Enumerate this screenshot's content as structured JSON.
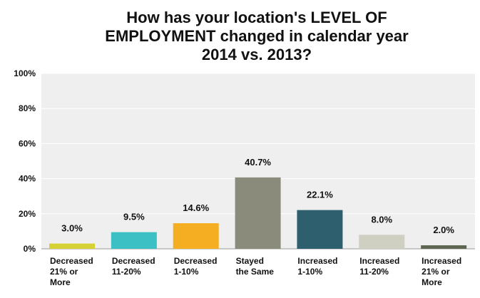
{
  "title_lines": [
    "How has your location's LEVEL OF",
    "EMPLOYMENT changed in calendar year",
    "2014 vs. 2013?"
  ],
  "chart_data": {
    "type": "bar",
    "title": "How has your location's LEVEL OF EMPLOYMENT changed in calendar year 2014 vs. 2013?",
    "categories": [
      [
        "Decreased",
        "21% or",
        "More"
      ],
      [
        "Decreased",
        "11-20%"
      ],
      [
        "Decreased",
        "1-10%"
      ],
      [
        "Stayed",
        "the Same"
      ],
      [
        "Increased",
        "1-10%"
      ],
      [
        "Increased",
        "11-20%"
      ],
      [
        "Increased",
        "21% or",
        "More"
      ]
    ],
    "values": [
      3.0,
      9.5,
      14.6,
      40.7,
      22.1,
      8.0,
      2.0
    ],
    "value_labels": [
      "3.0%",
      "9.5%",
      "14.6%",
      "40.7%",
      "22.1%",
      "8.0%",
      "2.0%"
    ],
    "colors": [
      "#d6d236",
      "#3cc0c4",
      "#f5ae22",
      "#8a8b7a",
      "#2d5f6e",
      "#cfcfc2",
      "#5c6650"
    ],
    "ylim": [
      0,
      100
    ],
    "yticks": [
      "0%",
      "20%",
      "40%",
      "60%",
      "80%",
      "100%"
    ],
    "ytick_values": [
      0,
      20,
      40,
      60,
      80,
      100
    ],
    "grid": true,
    "plot_background": "#efefef",
    "gridline_color": "#ffffff",
    "xlabel": "",
    "ylabel": ""
  }
}
